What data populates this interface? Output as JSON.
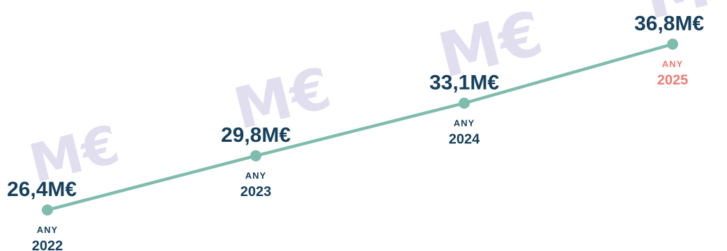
{
  "chart_data": {
    "type": "line",
    "title": "",
    "xlabel": "",
    "ylabel": "",
    "categories": [
      "2022",
      "2023",
      "2024",
      "2025"
    ],
    "x": [
      2022,
      2023,
      2024,
      2025
    ],
    "values": [
      26.4,
      29.8,
      33.1,
      36.8
    ],
    "value_labels": [
      "26,4M€",
      "29,8M€",
      "33,1M€",
      "36,8M€"
    ],
    "year_prefix": "ANY",
    "ylim": [
      23.0,
      38.0
    ],
    "grid": false,
    "legend": "none",
    "watermark_text": "M€",
    "colors": {
      "line": "#7fbcad",
      "marker": "#7fbcad",
      "value_text": "#17405d",
      "year_text": "#17405d",
      "highlight_year_text": "#ee7b73",
      "watermark": "#c9c4e2"
    },
    "highlight_index": 3
  }
}
